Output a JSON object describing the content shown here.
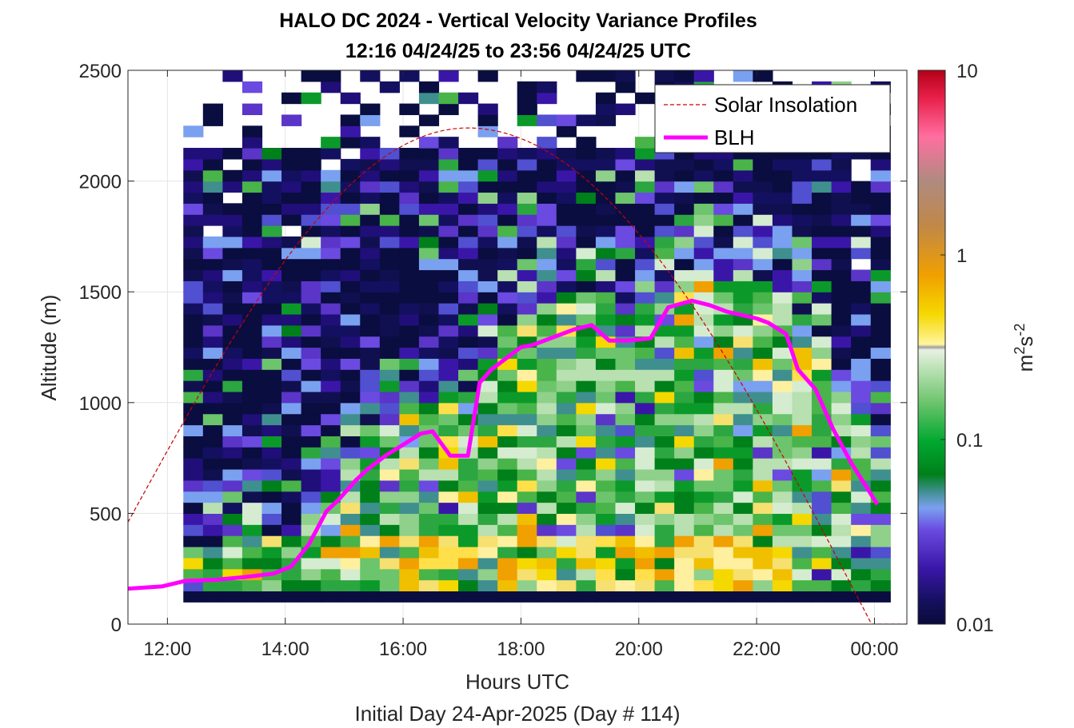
{
  "chart_data": {
    "type": "heatmap",
    "title": "HALO DC 2024 - Vertical Velocity Variance Profiles",
    "subtitle": "12:16 04/24/25 to 23:56 04/24/25  UTC",
    "xlabel": "Hours UTC",
    "ylabel": "Altitude (m)",
    "footer": "Initial Day 24-Apr-2025 (Day # 114)",
    "xlim": [
      11.33,
      24.55
    ],
    "ylim": [
      0,
      2500
    ],
    "x_ticks": [
      12,
      14,
      16,
      18,
      20,
      22,
      24
    ],
    "x_tick_labels": [
      "12:00",
      "14:00",
      "16:00",
      "18:00",
      "20:00",
      "22:00",
      "00:00"
    ],
    "y_ticks": [
      0,
      500,
      1000,
      1500,
      2000,
      2500
    ],
    "y_tick_labels": [
      "0",
      "500",
      "1000",
      "1500",
      "2000",
      "2500"
    ],
    "grid": true,
    "colorbar": {
      "label_base": "m",
      "label_sup1": "2",
      "label_mid": "s",
      "label_sup2": "-2",
      "scale": "log",
      "range": [
        0.01,
        10
      ],
      "tick_values": [
        0.01,
        0.1,
        1,
        10
      ],
      "tick_labels": [
        "0.01",
        "0.1",
        "1",
        "10"
      ]
    },
    "legend": {
      "placement": "top-right",
      "entries": [
        {
          "label": "Solar Insolation",
          "color": "#cc0000",
          "style": "dashed"
        },
        {
          "label": "BLH",
          "color": "#ff00ff",
          "style": "solid"
        }
      ]
    },
    "heatmap_grid": {
      "time_start": 12.27,
      "time_end": 24.2,
      "time_step": 0.3333,
      "altitude_start": 100,
      "altitude_end": 2500,
      "altitude_step": 50,
      "unit": "m^2 s^-2"
    },
    "series": [
      {
        "name": "BLH",
        "x": [
          11.33,
          11.9,
          12.3,
          12.8,
          13.3,
          13.8,
          14.1,
          14.4,
          14.7,
          14.9,
          15.2,
          15.4,
          15.7,
          16.0,
          16.3,
          16.5,
          16.8,
          17.1,
          17.3,
          17.5,
          18.0,
          18.2,
          18.5,
          18.9,
          19.2,
          19.5,
          19.8,
          20.2,
          20.5,
          20.9,
          21.2,
          21.5,
          22.0,
          22.2,
          22.5,
          22.7,
          23.0,
          23.3,
          23.6,
          24.05
        ],
        "y": [
          160,
          170,
          195,
          200,
          212,
          228,
          260,
          360,
          510,
          560,
          650,
          700,
          760,
          810,
          860,
          870,
          760,
          760,
          1090,
          1150,
          1250,
          1260,
          1290,
          1330,
          1350,
          1280,
          1280,
          1290,
          1430,
          1460,
          1440,
          1410,
          1380,
          1360,
          1310,
          1150,
          1060,
          880,
          730,
          540
        ]
      },
      {
        "name": "Solar Insolation",
        "peak_time": 17.1,
        "peak_altitude": 2240,
        "start_time": 11.33,
        "start_altitude": 460,
        "end_time": 23.95,
        "end_altitude": 0
      }
    ]
  }
}
